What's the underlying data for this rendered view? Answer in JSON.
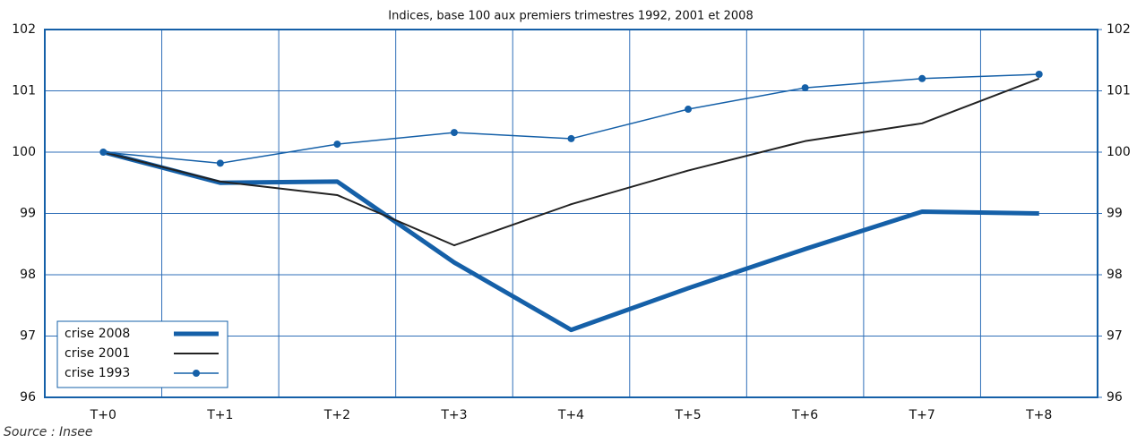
{
  "chart_data": {
    "type": "line",
    "title": "Indices, base 100 aux premiers trimestres 1992, 2001 et 2008",
    "categories": [
      "T+0",
      "T+1",
      "T+2",
      "T+3",
      "T+4",
      "T+5",
      "T+6",
      "T+7",
      "T+8"
    ],
    "series": [
      {
        "name": "crise 2008",
        "color": "#1560a8",
        "line_width": 5,
        "values": [
          100,
          99.5,
          99.52,
          98.2,
          97.1,
          97.78,
          98.42,
          99.03,
          99.0
        ]
      },
      {
        "name": "crise 2001",
        "color": "#222222",
        "line_width": 2,
        "values": [
          100,
          99.52,
          99.3,
          98.48,
          99.15,
          99.7,
          100.18,
          100.47,
          101.2
        ]
      },
      {
        "name": "crise 1993",
        "color": "#1560a8",
        "line_width": 1.5,
        "marker": "circle",
        "values": [
          100,
          99.82,
          100.13,
          100.32,
          100.22,
          100.7,
          101.05,
          101.2,
          101.27
        ]
      }
    ],
    "ylim": [
      96,
      102
    ],
    "yticks": [
      96,
      97,
      98,
      99,
      100,
      101,
      102
    ],
    "y2lim": [
      96,
      102
    ],
    "y2ticks": [
      96,
      97,
      98,
      99,
      100,
      101,
      102
    ],
    "grid": true,
    "legend": "lower left",
    "source": "Source : Insee"
  }
}
